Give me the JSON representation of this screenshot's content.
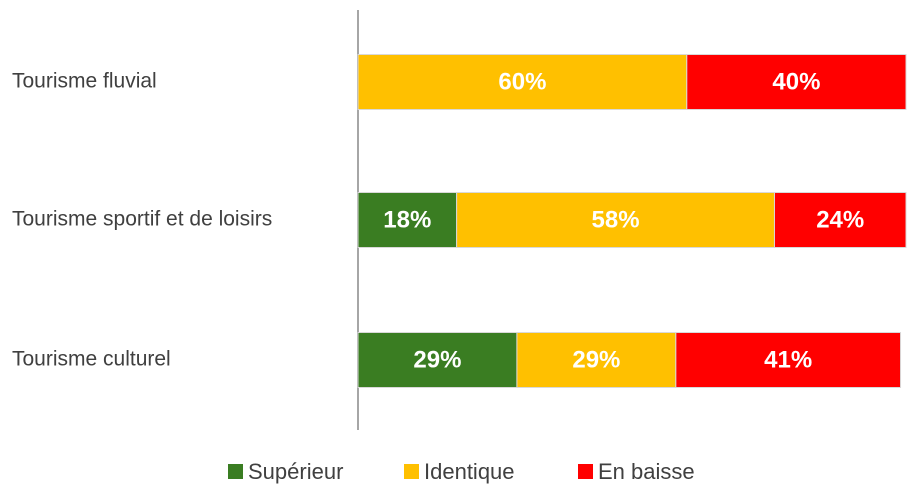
{
  "chart_data": {
    "type": "stacked-bar-horizontal",
    "categories": [
      "Tourisme fluvial",
      "Tourisme sportif et de loisirs",
      "Tourisme culturel"
    ],
    "series": [
      {
        "name": "Supérieur",
        "color": "#3a7d22",
        "values": [
          0,
          18,
          29
        ],
        "value_labels": [
          null,
          "18%",
          "29%"
        ]
      },
      {
        "name": "Identique",
        "color": "#ffc000",
        "values": [
          60,
          58,
          29
        ],
        "value_labels": [
          "60%",
          "58%",
          "29%"
        ]
      },
      {
        "name": "En baisse",
        "color": "#ff0000",
        "values": [
          40,
          24,
          41
        ],
        "value_labels": [
          "40%",
          "24%",
          "41%"
        ]
      }
    ],
    "xlim": [
      0,
      100
    ],
    "legend": "bottom"
  }
}
